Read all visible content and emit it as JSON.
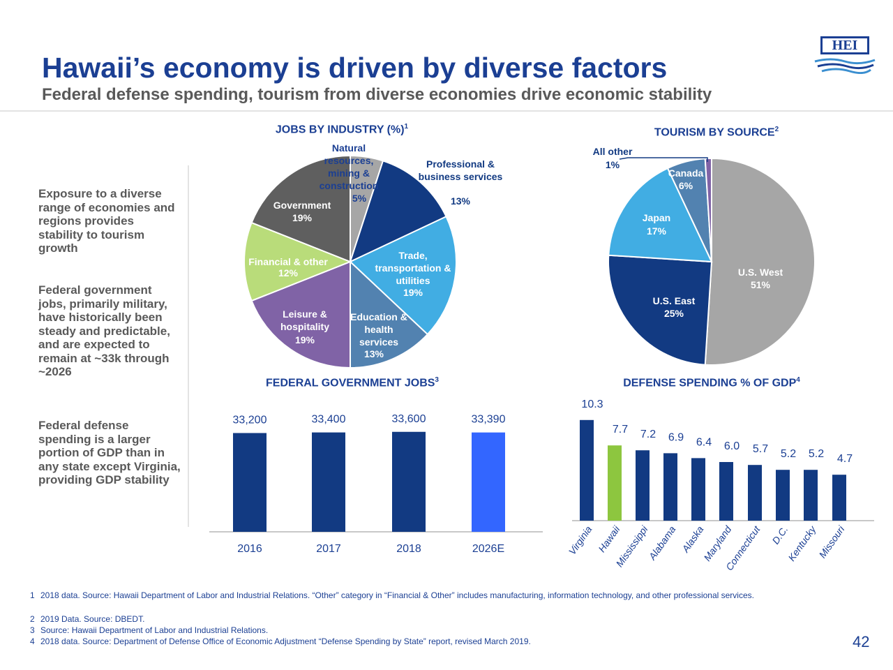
{
  "header": {
    "title": "Hawaii’s economy is driven by diverse factors",
    "subtitle": "Federal defense spending, tourism from diverse economies drive economic stability",
    "logo": "HEI"
  },
  "sidebar": [
    "Exposure to a diverse range of economies and regions provides stability to tourism growth",
    "Federal government jobs, primarily military, have historically been steady and predictable, and are expected to remain at ~33k through ~2026",
    "Federal defense spending is a larger portion of GDP than in any state except Virginia, providing GDP stability"
  ],
  "chart_data": [
    {
      "type": "pie",
      "title": "JOBS BY INDUSTRY (%)",
      "title_note": "1",
      "categories": [
        "Natural resources, mining & construction",
        "Professional & business services",
        "Trade, transportation & utilities",
        "Education & health services",
        "Leisure & hospitality",
        "Financial & other",
        "Government"
      ],
      "values": [
        5,
        13,
        19,
        13,
        19,
        12,
        19
      ],
      "value_labels": [
        "5%",
        "13%",
        "19%",
        "13%",
        "19%",
        "12%",
        "19%"
      ],
      "colors": [
        "#a6a6a6",
        "#123a82",
        "#41ade3",
        "#5282b0",
        "#8063a6",
        "#b9dc7a",
        "#5f5f5f"
      ]
    },
    {
      "type": "pie",
      "title": "TOURISM BY SOURCE",
      "title_note": "2",
      "categories": [
        "U.S. West",
        "U.S. East",
        "Japan",
        "Canada",
        "All other"
      ],
      "values": [
        51,
        25,
        17,
        6,
        1
      ],
      "value_labels": [
        "51%",
        "25%",
        "17%",
        "6%",
        "1%"
      ],
      "colors": [
        "#a6a6a6",
        "#123a82",
        "#41ade3",
        "#5282b0",
        "#8063a6"
      ]
    },
    {
      "type": "bar",
      "title": "FEDERAL GOVERNMENT JOBS",
      "title_note": "3",
      "categories": [
        "2016",
        "2017",
        "2018",
        "2026E"
      ],
      "values": [
        33200,
        33400,
        33600,
        33390
      ],
      "value_labels": [
        "33,200",
        "33,400",
        "33,600",
        "33,390"
      ],
      "colors": [
        "#123a82",
        "#123a82",
        "#123a82",
        "#3366ff"
      ],
      "ylim": [
        0,
        38000
      ]
    },
    {
      "type": "bar",
      "title": "DEFENSE SPENDING % OF GDP",
      "title_note": "4",
      "categories": [
        "Virginia",
        "Hawaii",
        "Mississippi",
        "Alabama",
        "Alaska",
        "Maryland",
        "Connecticut",
        "D.C.",
        "Kentucky",
        "Missouri"
      ],
      "values": [
        10.3,
        7.7,
        7.2,
        6.9,
        6.4,
        6.0,
        5.7,
        5.2,
        5.2,
        4.7
      ],
      "value_labels": [
        "10.3",
        "7.7",
        "7.2",
        "6.9",
        "6.4",
        "6.0",
        "5.7",
        "5.2",
        "5.2",
        "4.7"
      ],
      "colors": [
        "#123a82",
        "#8dc63f",
        "#123a82",
        "#123a82",
        "#123a82",
        "#123a82",
        "#123a82",
        "#123a82",
        "#123a82",
        "#123a82"
      ],
      "ylim": [
        0,
        11
      ]
    }
  ],
  "footnotes": [
    {
      "number": "1",
      "text": "2018 data. Source: Hawaii Department of Labor and Industrial Relations. “Other” category in “Financial & Other” includes manufacturing, information technology, and other professional services."
    },
    {
      "number": "2",
      "text": "2019 Data. Source: DBEDT."
    },
    {
      "number": "3",
      "text": "Source: Hawaii Department of Labor and Industrial Relations."
    },
    {
      "number": "4",
      "text": "2018 data. Source: Department of Defense Office of Economic Adjustment “Defense Spending by State” report, revised March 2019."
    }
  ],
  "page_number": "42"
}
